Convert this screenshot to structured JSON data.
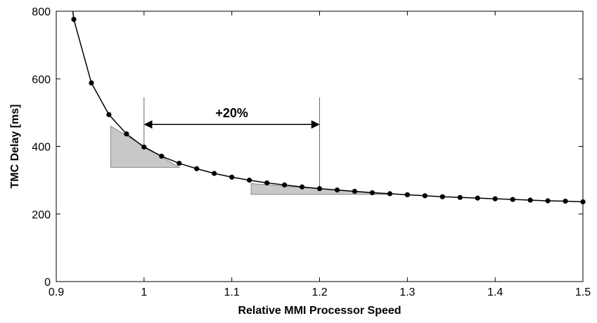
{
  "chart_data": {
    "type": "line",
    "title": "",
    "xlabel": "Relative MMI Processor Speed",
    "ylabel": "TMC Delay [ms]",
    "xlim": [
      0.9,
      1.5
    ],
    "ylim": [
      0,
      800
    ],
    "xticks": [
      0.9,
      1,
      1.1,
      1.2,
      1.3,
      1.4,
      1.5
    ],
    "xtick_labels": [
      "0.9",
      "1",
      "1.1",
      "1.2",
      "1.3",
      "1.4",
      "1.5"
    ],
    "yticks": [
      0,
      200,
      400,
      600,
      800
    ],
    "ytick_labels": [
      "0",
      "200",
      "400",
      "600",
      "800"
    ],
    "grid": false,
    "series": [
      {
        "x": [
          0.92,
          0.94,
          0.96,
          0.98,
          1.0,
          1.02,
          1.04,
          1.06,
          1.08,
          1.1,
          1.12,
          1.14,
          1.16,
          1.18,
          1.2,
          1.22,
          1.24,
          1.26,
          1.28,
          1.3,
          1.32,
          1.34,
          1.36,
          1.38,
          1.4,
          1.42,
          1.44,
          1.46,
          1.48,
          1.5
        ],
        "y": [
          776,
          588,
          494,
          437,
          398,
          371,
          350,
          334,
          320,
          309,
          300,
          292,
          286,
          280,
          275,
          271,
          267,
          263,
          260,
          257,
          254,
          251,
          249,
          247,
          245,
          243,
          241,
          239,
          238,
          236
        ]
      }
    ],
    "annotations": [
      {
        "text": "+20%",
        "x_from": 1.0,
        "x_to": 1.2,
        "arrow_y": 465,
        "bracket_top": 545
      }
    ],
    "shaded_triangles": [
      {
        "points": [
          [
            0.962,
            460
          ],
          [
            0.962,
            338
          ],
          [
            1.04,
            338
          ]
        ]
      },
      {
        "points": [
          [
            1.122,
            290
          ],
          [
            1.122,
            258
          ],
          [
            1.28,
            258
          ]
        ]
      }
    ],
    "colors": {
      "line": "#000000",
      "shade": "#c8c8c8",
      "shade_stroke": "#888888"
    }
  }
}
